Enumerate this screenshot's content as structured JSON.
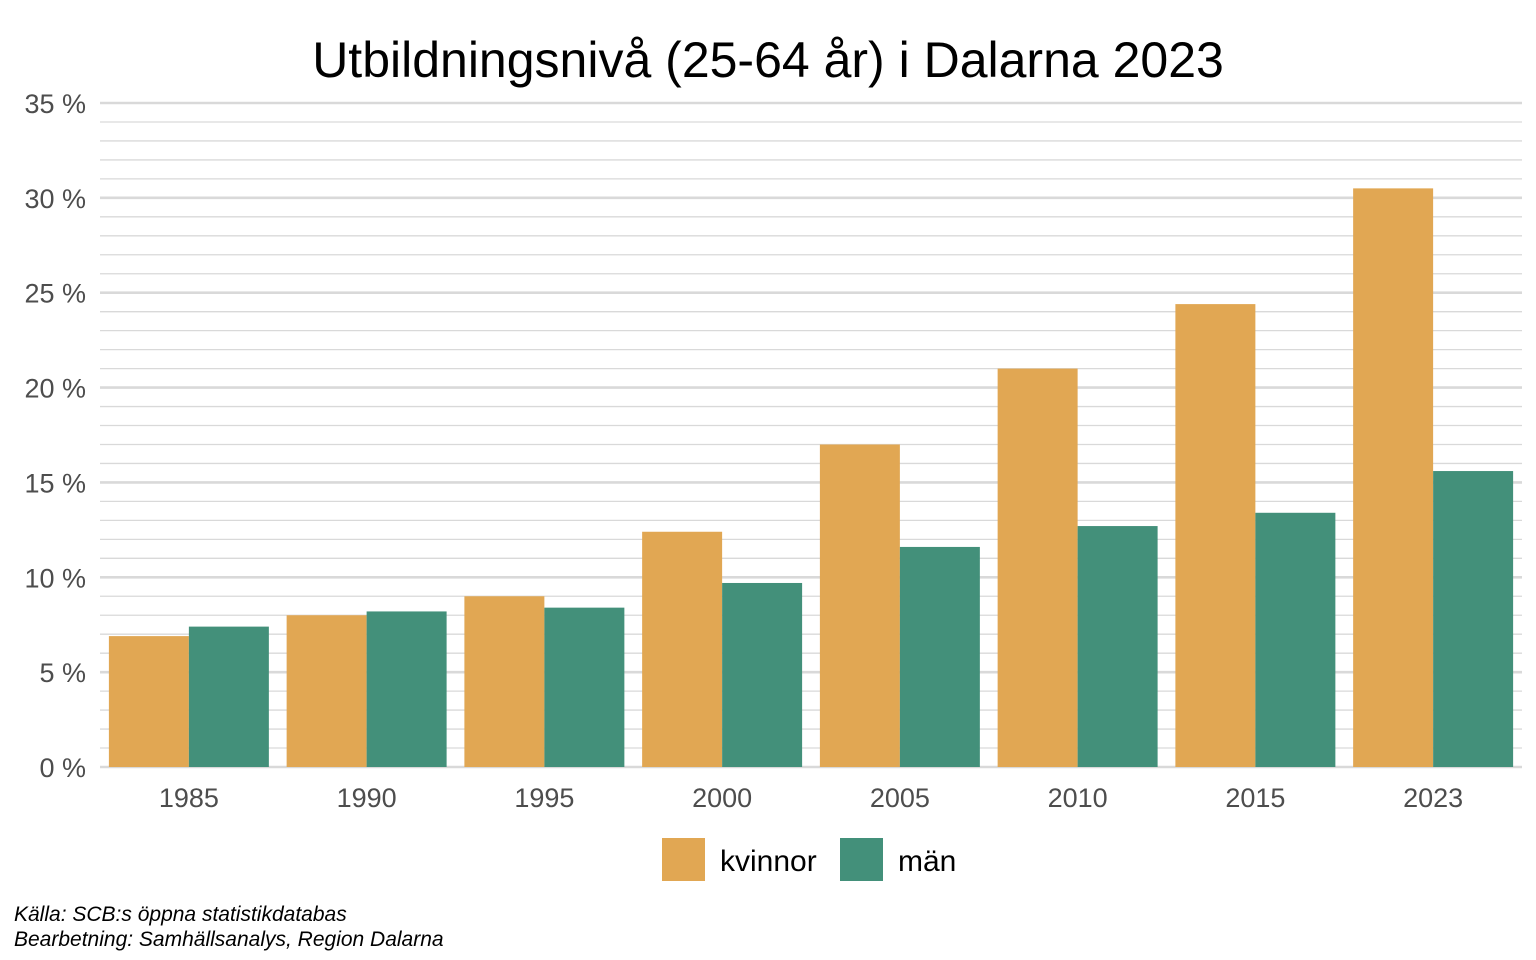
{
  "chart_data": {
    "type": "bar",
    "title": "Utbildningsnivå (25-64 år) i Dalarna 2023",
    "xlabel": "",
    "ylabel": "",
    "categories": [
      "1985",
      "1990",
      "1995",
      "2000",
      "2005",
      "2010",
      "2015",
      "2023"
    ],
    "series": [
      {
        "name": "kvinnor",
        "color": "#E1A753",
        "values": [
          6.9,
          8.0,
          9.0,
          12.4,
          17.0,
          21.0,
          24.4,
          30.5
        ]
      },
      {
        "name": "män",
        "color": "#43907A",
        "values": [
          7.4,
          8.2,
          8.4,
          9.7,
          11.6,
          12.7,
          13.4,
          15.6
        ]
      }
    ],
    "ylim": [
      0,
      35
    ],
    "y_ticks": [
      "0 %",
      "5 %",
      "10 %",
      "15 %",
      "20 %",
      "25 %",
      "30 %",
      "35 %"
    ],
    "grid": true,
    "legend_position": "bottom-center"
  },
  "caption": {
    "line1": "Källa: SCB:s öppna statistikdatabas",
    "line2": "Bearbetning: Samhällsanalys, Region Dalarna"
  },
  "colors": {
    "grid": "#d9d9d9",
    "tick_text": "#4d4d4d"
  }
}
